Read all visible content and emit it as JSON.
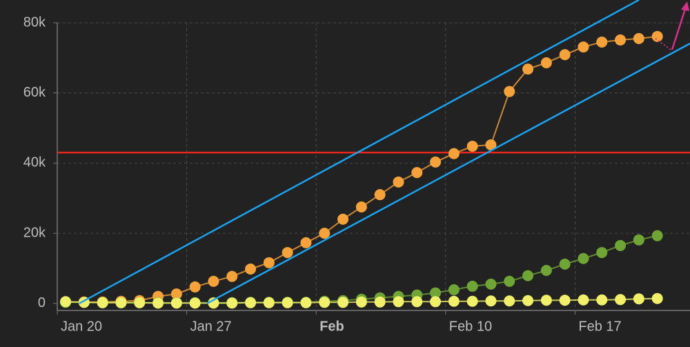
{
  "chart_data": {
    "type": "line",
    "categories": [
      "Jan 20",
      null,
      null,
      null,
      null,
      null,
      null,
      "Jan 27",
      null,
      null,
      null,
      null,
      null,
      null,
      "Feb",
      null,
      null,
      null,
      null,
      null,
      null,
      "Feb 10",
      null,
      null,
      null,
      null,
      null,
      null,
      "Feb 17",
      null,
      null,
      null,
      null
    ],
    "series": [
      {
        "color": "#f5a23a",
        "values": [
          400,
          400,
          400,
          600,
          800,
          2000,
          2700,
          4700,
          6300,
          7700,
          9800,
          11600,
          14500,
          17300,
          20000,
          24000,
          27500,
          31000,
          34600,
          37300,
          40300,
          42700,
          44800,
          45200,
          60400,
          66800,
          68600,
          70900,
          73100,
          74500,
          75100,
          75500,
          76100
        ]
      },
      {
        "color": "#6fa535",
        "values": [
          300,
          300,
          200,
          200,
          200,
          200,
          200,
          200,
          200,
          200,
          300,
          300,
          300,
          300,
          600,
          800,
          1200,
          1600,
          2000,
          2400,
          3000,
          3900,
          4900,
          5500,
          6300,
          7900,
          9400,
          11200,
          12800,
          14500,
          16500,
          18100,
          19300
        ]
      },
      {
        "color": "#f0f06a",
        "values": [
          500,
          300,
          200,
          200,
          200,
          100,
          100,
          100,
          100,
          100,
          200,
          200,
          200,
          200,
          300,
          300,
          400,
          400,
          500,
          500,
          500,
          600,
          600,
          700,
          700,
          800,
          900,
          900,
          1000,
          1000,
          1100,
          1300,
          1400
        ]
      }
    ],
    "ylim": [
      -2000,
      80000
    ],
    "yticks": [
      0,
      {
        "value": 20000,
        "label": "20k"
      },
      {
        "value": 40000,
        "label": "40k"
      },
      {
        "value": 60000,
        "label": "60k"
      },
      {
        "value": 80000,
        "label": "80k"
      }
    ],
    "grid": true,
    "reference_line": {
      "value": 43000,
      "color": "#e8281e"
    },
    "trend_lines": [
      {
        "color": "#1aa3f0",
        "x": [
          0.74,
          31.0
        ],
        "y": [
          0,
          86500
        ]
      },
      {
        "color": "#1aa3f0",
        "x": [
          7.65,
          33.77
        ],
        "y": [
          0,
          74100
        ]
      }
    ]
  }
}
